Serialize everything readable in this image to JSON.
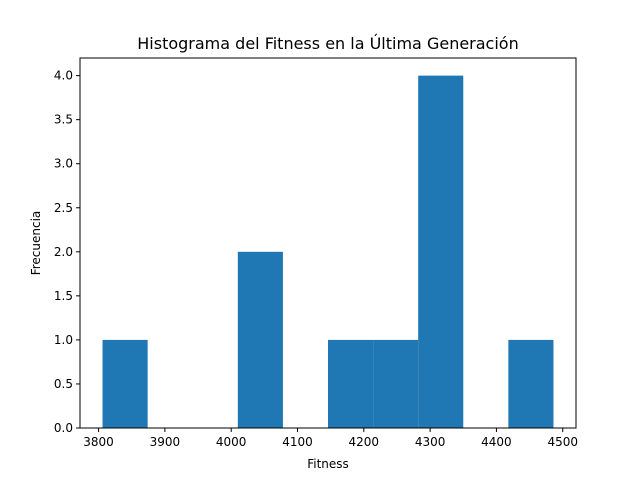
{
  "chart_data": {
    "type": "bar",
    "title": "Histograma del Fitness en la Última Generación",
    "xlabel": "Fitness",
    "ylabel": "Frecuencia",
    "bin_edges": [
      3806,
      3874,
      3942,
      4010,
      4078,
      4146,
      4214,
      4282,
      4350,
      4418,
      4486
    ],
    "values": [
      1,
      0,
      0,
      2,
      0,
      1,
      1,
      4,
      0,
      1
    ],
    "xlim": [
      3772,
      4520
    ],
    "ylim": [
      0,
      4.2
    ],
    "xticks": [
      3800,
      3900,
      4000,
      4100,
      4200,
      4300,
      4400,
      4500
    ],
    "xtick_labels": [
      "3800",
      "3900",
      "4000",
      "4100",
      "4200",
      "4300",
      "4400",
      "4500"
    ],
    "yticks": [
      0.0,
      0.5,
      1.0,
      1.5,
      2.0,
      2.5,
      3.0,
      3.5,
      4.0
    ],
    "ytick_labels": [
      "0.0",
      "0.5",
      "1.0",
      "1.5",
      "2.0",
      "2.5",
      "3.0",
      "3.5",
      "4.0"
    ],
    "bar_color": "#1f77b4",
    "grid": false
  }
}
